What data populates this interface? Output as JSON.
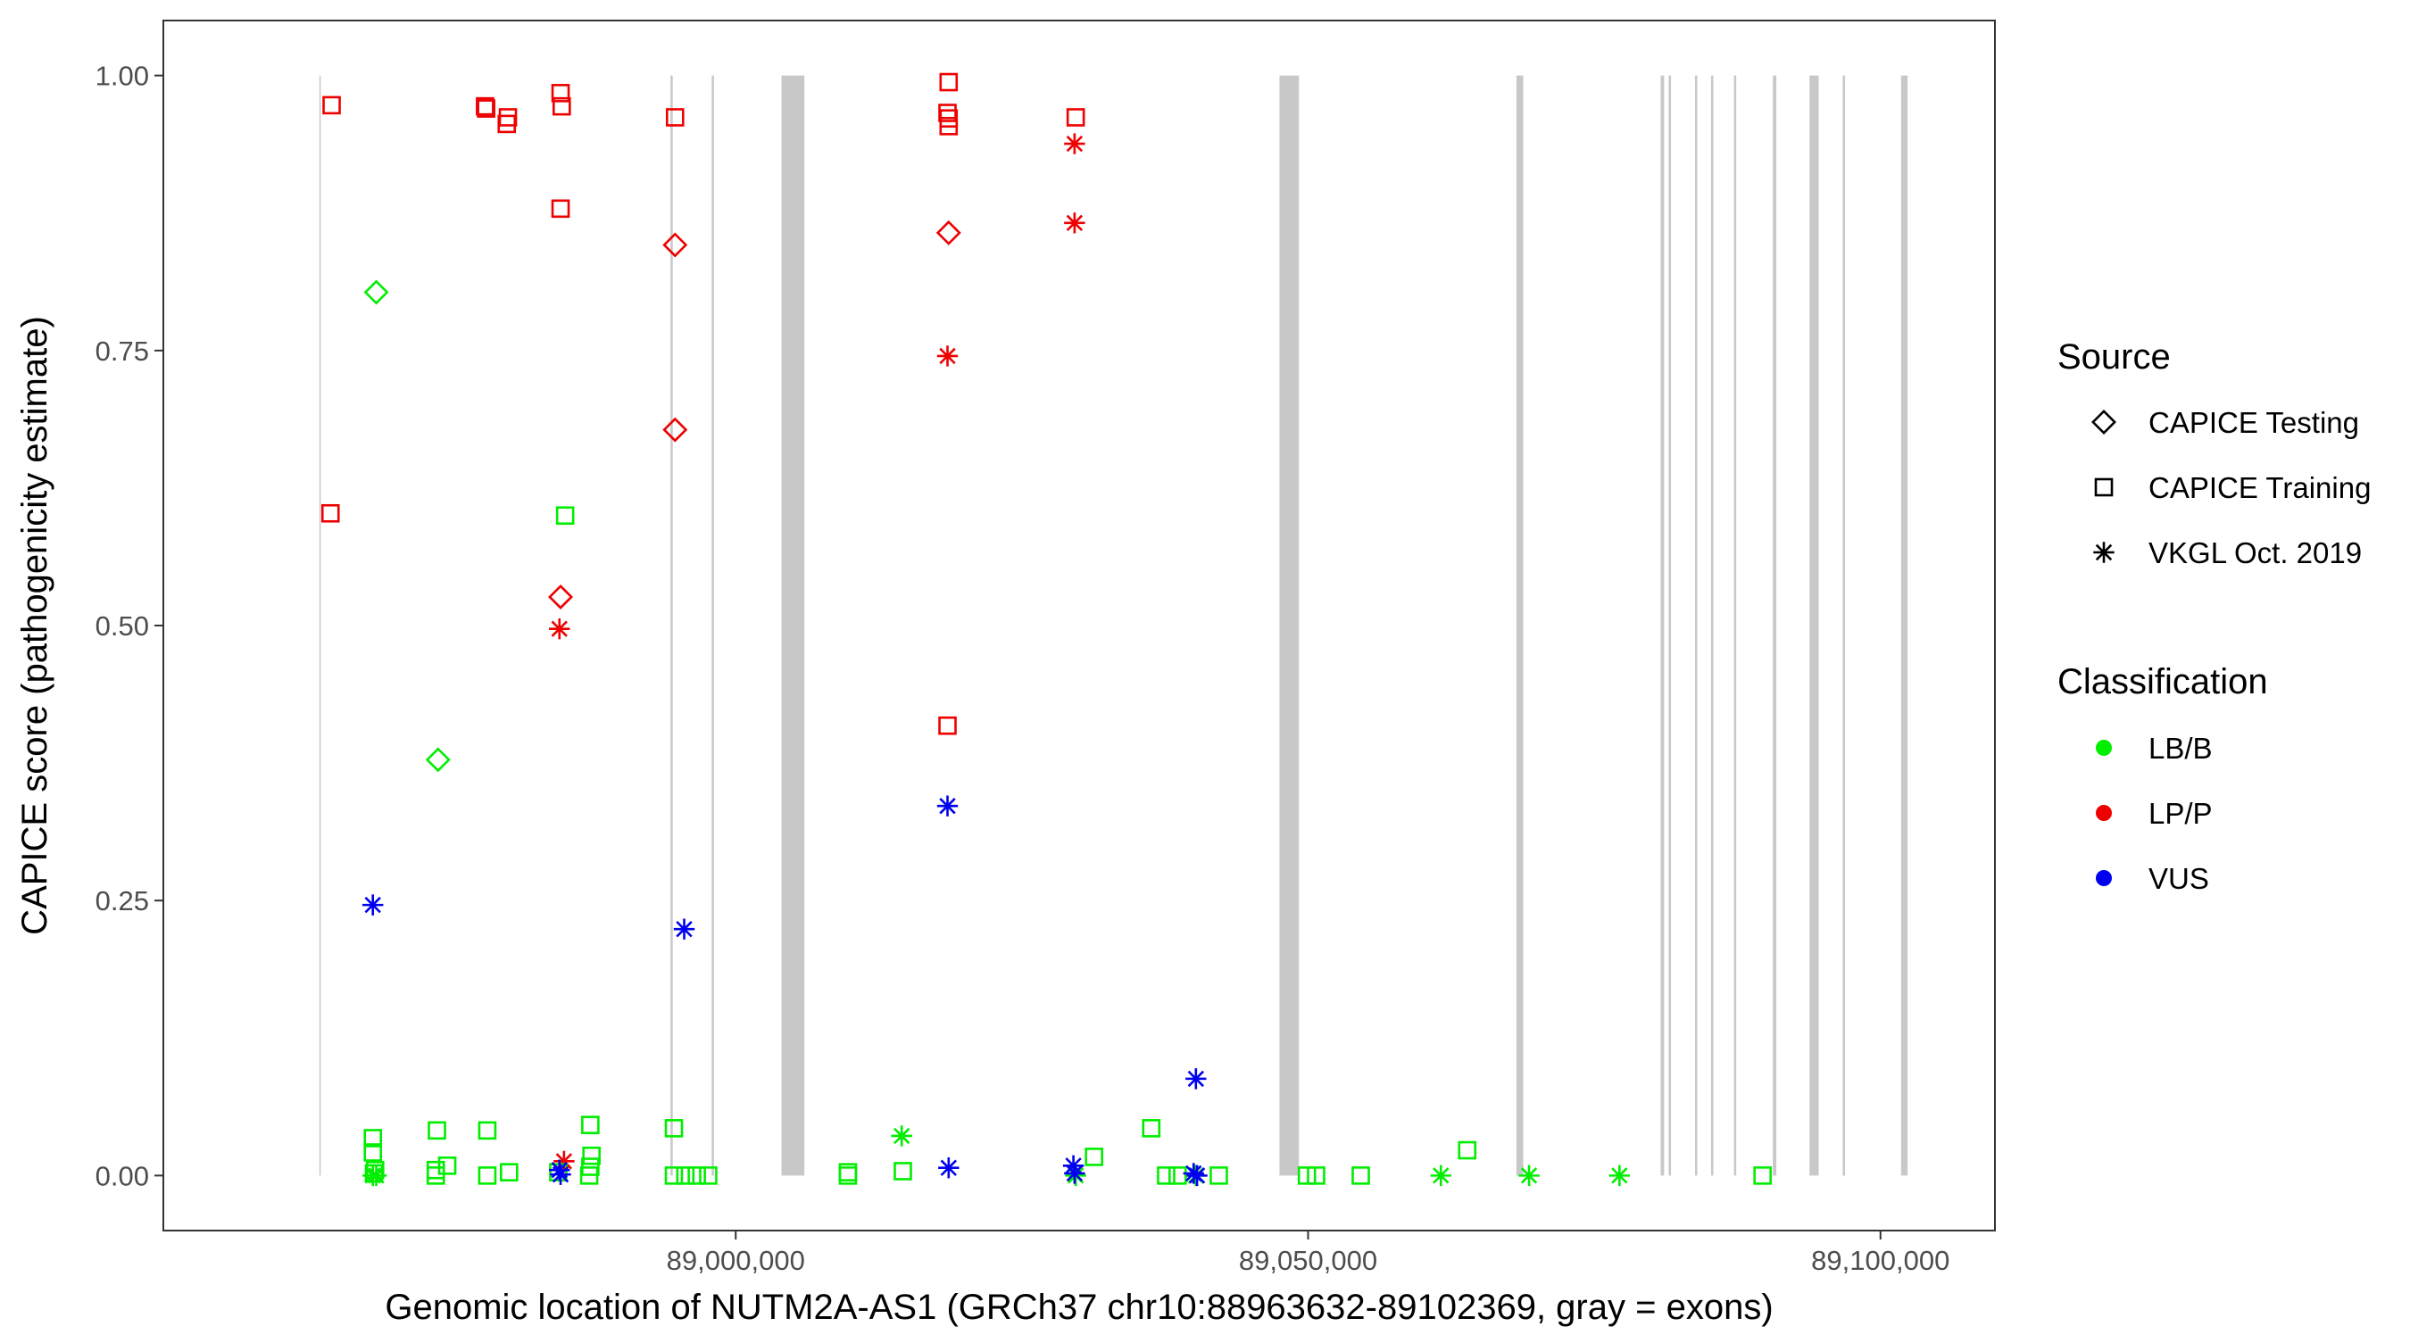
{
  "chart_data": {
    "type": "scatter",
    "title": "",
    "xlabel": "Genomic location of NUTM2A-AS1 (GRCh37 chr10:88963632-89102369, gray = exons)",
    "ylabel": "CAPICE score (pathogenicity estimate)",
    "xlim": [
      88950000,
      89110000
    ],
    "ylim": [
      -0.05,
      1.05
    ],
    "x_ticks": [
      89000000,
      89050000,
      89100000
    ],
    "x_tick_labels": [
      "89,000,000",
      "89,050,000",
      "89,100,000"
    ],
    "y_ticks": [
      0,
      0.25,
      0.5,
      0.75,
      1.0
    ],
    "y_tick_labels": [
      "0.00",
      "0.25",
      "0.50",
      "0.75",
      "1.00"
    ],
    "grid": false,
    "legend_position": "right",
    "legend": {
      "shape_title": "Source",
      "shape_entries": [
        {
          "label": "CAPICE Testing",
          "shape": "diamond"
        },
        {
          "label": "CAPICE Training",
          "shape": "square"
        },
        {
          "label": "VKGL Oct. 2019",
          "shape": "asterisk"
        }
      ],
      "color_title": "Classification",
      "color_entries": [
        {
          "label": "LB/B",
          "color": "#00ee00"
        },
        {
          "label": "LP/P",
          "color": "#ee0000"
        },
        {
          "label": "VUS",
          "color": "#0000ee"
        }
      ]
    },
    "exons": [
      [
        88963632,
        88963700
      ],
      [
        88994300,
        88994500
      ],
      [
        88997900,
        88998100
      ],
      [
        89004000,
        89006000
      ],
      [
        89047500,
        89049200
      ],
      [
        89068200,
        89068800
      ],
      [
        89080800,
        89081100
      ],
      [
        89081500,
        89081700
      ],
      [
        89083800,
        89084000
      ],
      [
        89085200,
        89085400
      ],
      [
        89087200,
        89087400
      ],
      [
        89090600,
        89090900
      ],
      [
        89093800,
        89094600
      ],
      [
        89096700,
        89096900
      ],
      [
        89101800,
        89102369
      ]
    ],
    "series": [
      {
        "name": "LP/P",
        "color": "#ee0000",
        "points": [
          {
            "x": 88964700,
            "y": 0.973,
            "shape": "square"
          },
          {
            "x": 88964600,
            "y": 0.602,
            "shape": "square"
          },
          {
            "x": 88978100,
            "y": 0.972,
            "shape": "square"
          },
          {
            "x": 88978200,
            "y": 0.97,
            "shape": "square"
          },
          {
            "x": 88980100,
            "y": 0.962,
            "shape": "square"
          },
          {
            "x": 88980000,
            "y": 0.956,
            "shape": "square"
          },
          {
            "x": 88984700,
            "y": 0.984,
            "shape": "square"
          },
          {
            "x": 88984800,
            "y": 0.972,
            "shape": "square"
          },
          {
            "x": 88984700,
            "y": 0.879,
            "shape": "square"
          },
          {
            "x": 88984700,
            "y": 0.526,
            "shape": "diamond"
          },
          {
            "x": 88984600,
            "y": 0.497,
            "shape": "asterisk"
          },
          {
            "x": 88985000,
            "y": 0.013,
            "shape": "asterisk"
          },
          {
            "x": 88994700,
            "y": 0.962,
            "shape": "square"
          },
          {
            "x": 88994700,
            "y": 0.846,
            "shape": "diamond"
          },
          {
            "x": 88994700,
            "y": 0.678,
            "shape": "diamond"
          },
          {
            "x": 89018600,
            "y": 0.994,
            "shape": "square"
          },
          {
            "x": 89018500,
            "y": 0.966,
            "shape": "square"
          },
          {
            "x": 89018600,
            "y": 0.961,
            "shape": "square"
          },
          {
            "x": 89018600,
            "y": 0.954,
            "shape": "square"
          },
          {
            "x": 89018600,
            "y": 0.857,
            "shape": "diamond"
          },
          {
            "x": 89018500,
            "y": 0.745,
            "shape": "asterisk"
          },
          {
            "x": 89018500,
            "y": 0.409,
            "shape": "square"
          },
          {
            "x": 89029700,
            "y": 0.962,
            "shape": "square"
          },
          {
            "x": 89029600,
            "y": 0.938,
            "shape": "asterisk"
          },
          {
            "x": 89029600,
            "y": 0.866,
            "shape": "asterisk"
          }
        ]
      },
      {
        "name": "LB/B",
        "color": "#00ee00",
        "points": [
          {
            "x": 88968600,
            "y": 0.803,
            "shape": "diamond"
          },
          {
            "x": 88974000,
            "y": 0.378,
            "shape": "diamond"
          },
          {
            "x": 88985100,
            "y": 0.6,
            "shape": "square"
          },
          {
            "x": 88968300,
            "y": 0.034,
            "shape": "square"
          },
          {
            "x": 88968300,
            "y": 0.021,
            "shape": "square"
          },
          {
            "x": 88968500,
            "y": 0.005,
            "shape": "square"
          },
          {
            "x": 88968400,
            "y": 0.002,
            "shape": "square"
          },
          {
            "x": 88968300,
            "y": 0.0,
            "shape": "asterisk"
          },
          {
            "x": 88968600,
            "y": 0.0,
            "shape": "asterisk"
          },
          {
            "x": 88973900,
            "y": 0.041,
            "shape": "square"
          },
          {
            "x": 88974800,
            "y": 0.009,
            "shape": "square"
          },
          {
            "x": 88973800,
            "y": 0.005,
            "shape": "square"
          },
          {
            "x": 88973800,
            "y": 0.0,
            "shape": "square"
          },
          {
            "x": 88978300,
            "y": 0.041,
            "shape": "square"
          },
          {
            "x": 88978300,
            "y": 0.0,
            "shape": "square"
          },
          {
            "x": 88980200,
            "y": 0.003,
            "shape": "square"
          },
          {
            "x": 88984500,
            "y": 0.003,
            "shape": "square"
          },
          {
            "x": 88987300,
            "y": 0.046,
            "shape": "square"
          },
          {
            "x": 88987400,
            "y": 0.018,
            "shape": "square"
          },
          {
            "x": 88987300,
            "y": 0.008,
            "shape": "square"
          },
          {
            "x": 88987200,
            "y": 0.0,
            "shape": "square"
          },
          {
            "x": 88994600,
            "y": 0.043,
            "shape": "square"
          },
          {
            "x": 88994600,
            "y": 0.0,
            "shape": "square"
          },
          {
            "x": 88995600,
            "y": 0.0,
            "shape": "square"
          },
          {
            "x": 88996600,
            "y": 0.0,
            "shape": "square"
          },
          {
            "x": 88997600,
            "y": 0.0,
            "shape": "square"
          },
          {
            "x": 89009800,
            "y": 0.003,
            "shape": "square"
          },
          {
            "x": 89009800,
            "y": 0.0,
            "shape": "square"
          },
          {
            "x": 89014500,
            "y": 0.036,
            "shape": "asterisk"
          },
          {
            "x": 89014600,
            "y": 0.004,
            "shape": "square"
          },
          {
            "x": 89031300,
            "y": 0.017,
            "shape": "square"
          },
          {
            "x": 89036300,
            "y": 0.043,
            "shape": "square"
          },
          {
            "x": 89037600,
            "y": 0.0,
            "shape": "square"
          },
          {
            "x": 89038600,
            "y": 0.0,
            "shape": "square"
          },
          {
            "x": 89042200,
            "y": 0.0,
            "shape": "square"
          },
          {
            "x": 89049900,
            "y": 0.0,
            "shape": "square"
          },
          {
            "x": 89050700,
            "y": 0.0,
            "shape": "square"
          },
          {
            "x": 89054600,
            "y": 0.0,
            "shape": "square"
          },
          {
            "x": 89061600,
            "y": 0.0,
            "shape": "asterisk"
          },
          {
            "x": 89063900,
            "y": 0.023,
            "shape": "square"
          },
          {
            "x": 89069300,
            "y": 0.0,
            "shape": "asterisk"
          },
          {
            "x": 89077200,
            "y": 0.0,
            "shape": "asterisk"
          },
          {
            "x": 89089700,
            "y": 0.0,
            "shape": "square"
          },
          {
            "x": 89029700,
            "y": 0.0,
            "shape": "asterisk"
          },
          {
            "x": 89040200,
            "y": 0.0,
            "shape": "asterisk"
          }
        ]
      },
      {
        "name": "VUS",
        "color": "#0000ee",
        "points": [
          {
            "x": 88968300,
            "y": 0.246,
            "shape": "asterisk"
          },
          {
            "x": 88984600,
            "y": 0.005,
            "shape": "asterisk"
          },
          {
            "x": 88984700,
            "y": 0.001,
            "shape": "asterisk"
          },
          {
            "x": 88995500,
            "y": 0.224,
            "shape": "asterisk"
          },
          {
            "x": 89018500,
            "y": 0.336,
            "shape": "asterisk"
          },
          {
            "x": 89018600,
            "y": 0.007,
            "shape": "asterisk"
          },
          {
            "x": 89029500,
            "y": 0.009,
            "shape": "asterisk"
          },
          {
            "x": 89029600,
            "y": 0.002,
            "shape": "asterisk"
          },
          {
            "x": 89040200,
            "y": 0.088,
            "shape": "asterisk"
          },
          {
            "x": 89040000,
            "y": 0.002,
            "shape": "asterisk"
          },
          {
            "x": 89040300,
            "y": 0.0,
            "shape": "asterisk"
          }
        ]
      }
    ]
  }
}
